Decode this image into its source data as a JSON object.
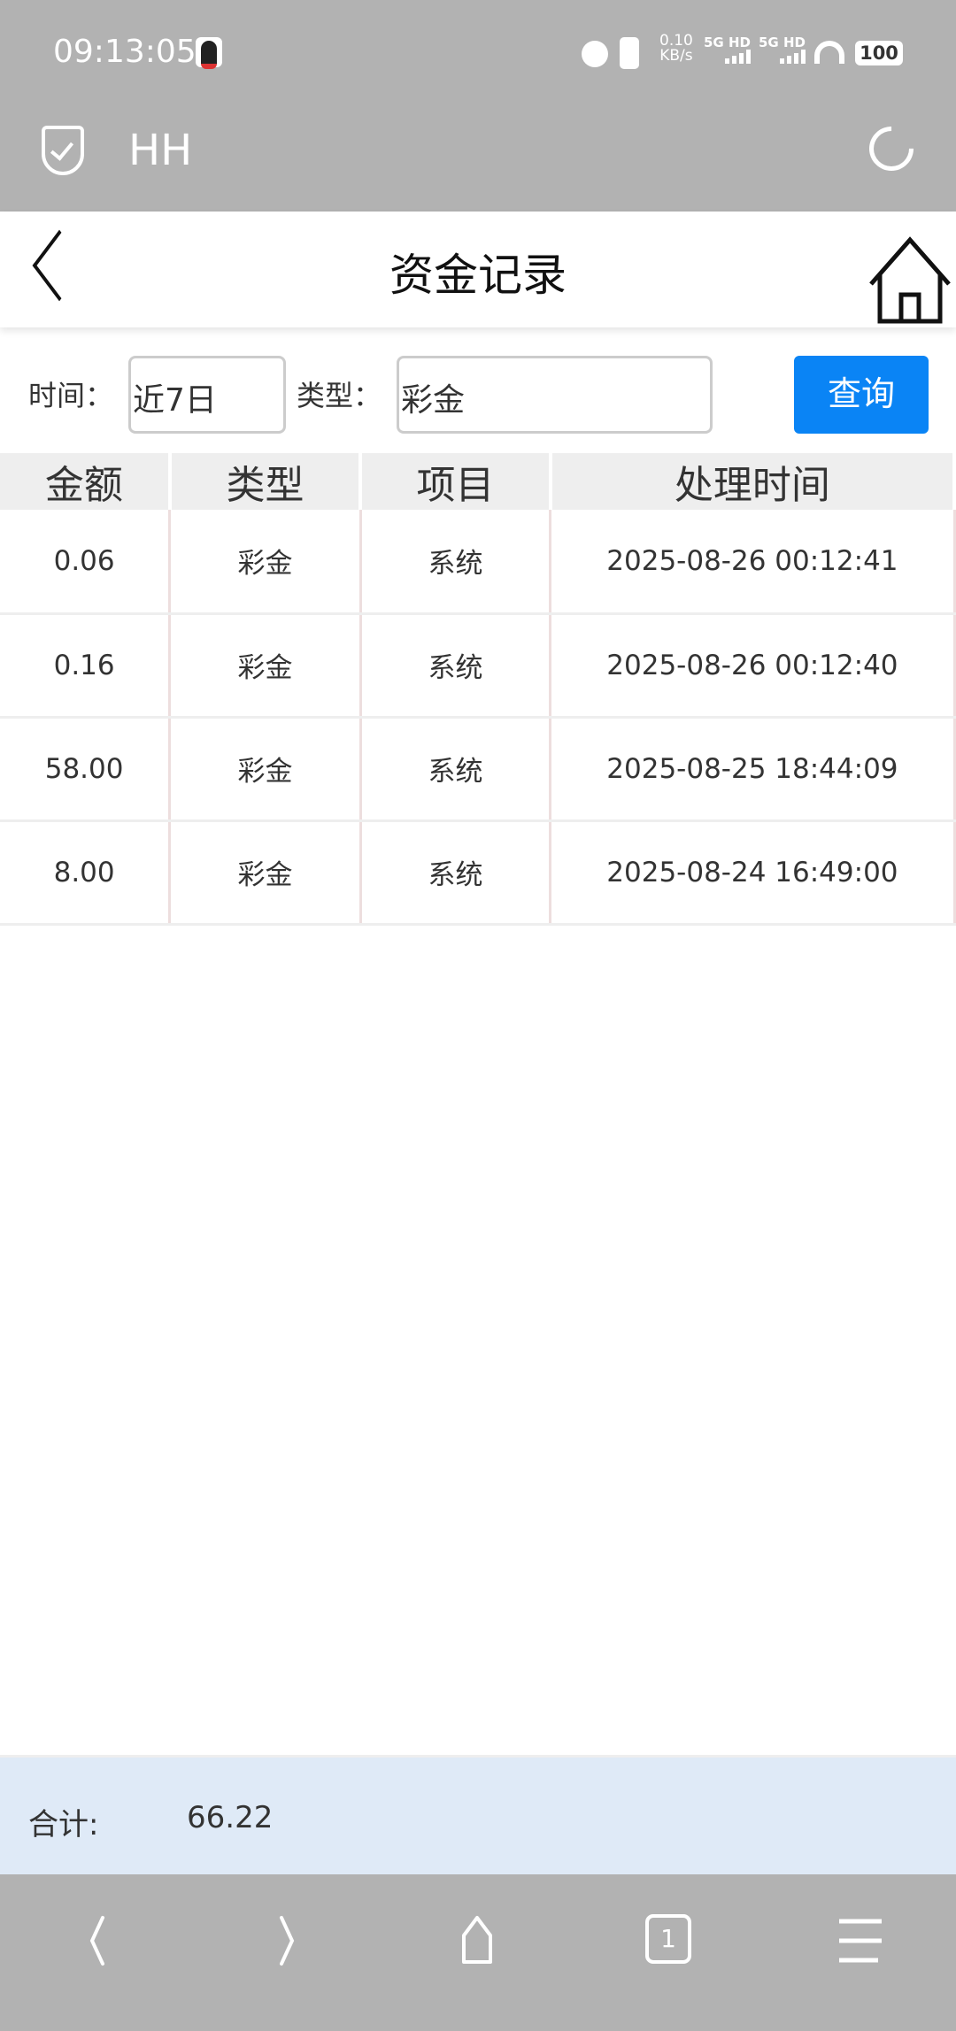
{
  "status_bar": {
    "time": "09:13:05",
    "net_speed": "0.10",
    "net_unit": "KB/s",
    "sim1": "5G HD",
    "sim2": "5G HD",
    "battery": "100",
    "icons": [
      "qq-icon",
      "alarm-icon",
      "vibrate-icon",
      "signal-icon",
      "wifi-icon",
      "battery-icon"
    ]
  },
  "browser": {
    "site_title": "HH"
  },
  "header": {
    "title": "资金记录"
  },
  "filter": {
    "time_label": "时间：",
    "time_value": "近7日",
    "type_label": "类型：",
    "type_value": "彩金",
    "query_label": "查询",
    "accent": "#0a84f5"
  },
  "table": {
    "headers": [
      "金额",
      "类型",
      "项目",
      "处理时间"
    ],
    "rows": [
      [
        "0.06",
        "彩金",
        "系统",
        "2025-08-26 00:12:41"
      ],
      [
        "0.16",
        "彩金",
        "系统",
        "2025-08-26 00:12:40"
      ],
      [
        "58.00",
        "彩金",
        "系统",
        "2025-08-25 18:44:09"
      ],
      [
        "8.00",
        "彩金",
        "系统",
        "2025-08-24 16:49:00"
      ]
    ]
  },
  "footer": {
    "total_label": "合计:",
    "total_value": "66.22"
  },
  "bottom_nav": {
    "tab_count": "1"
  }
}
